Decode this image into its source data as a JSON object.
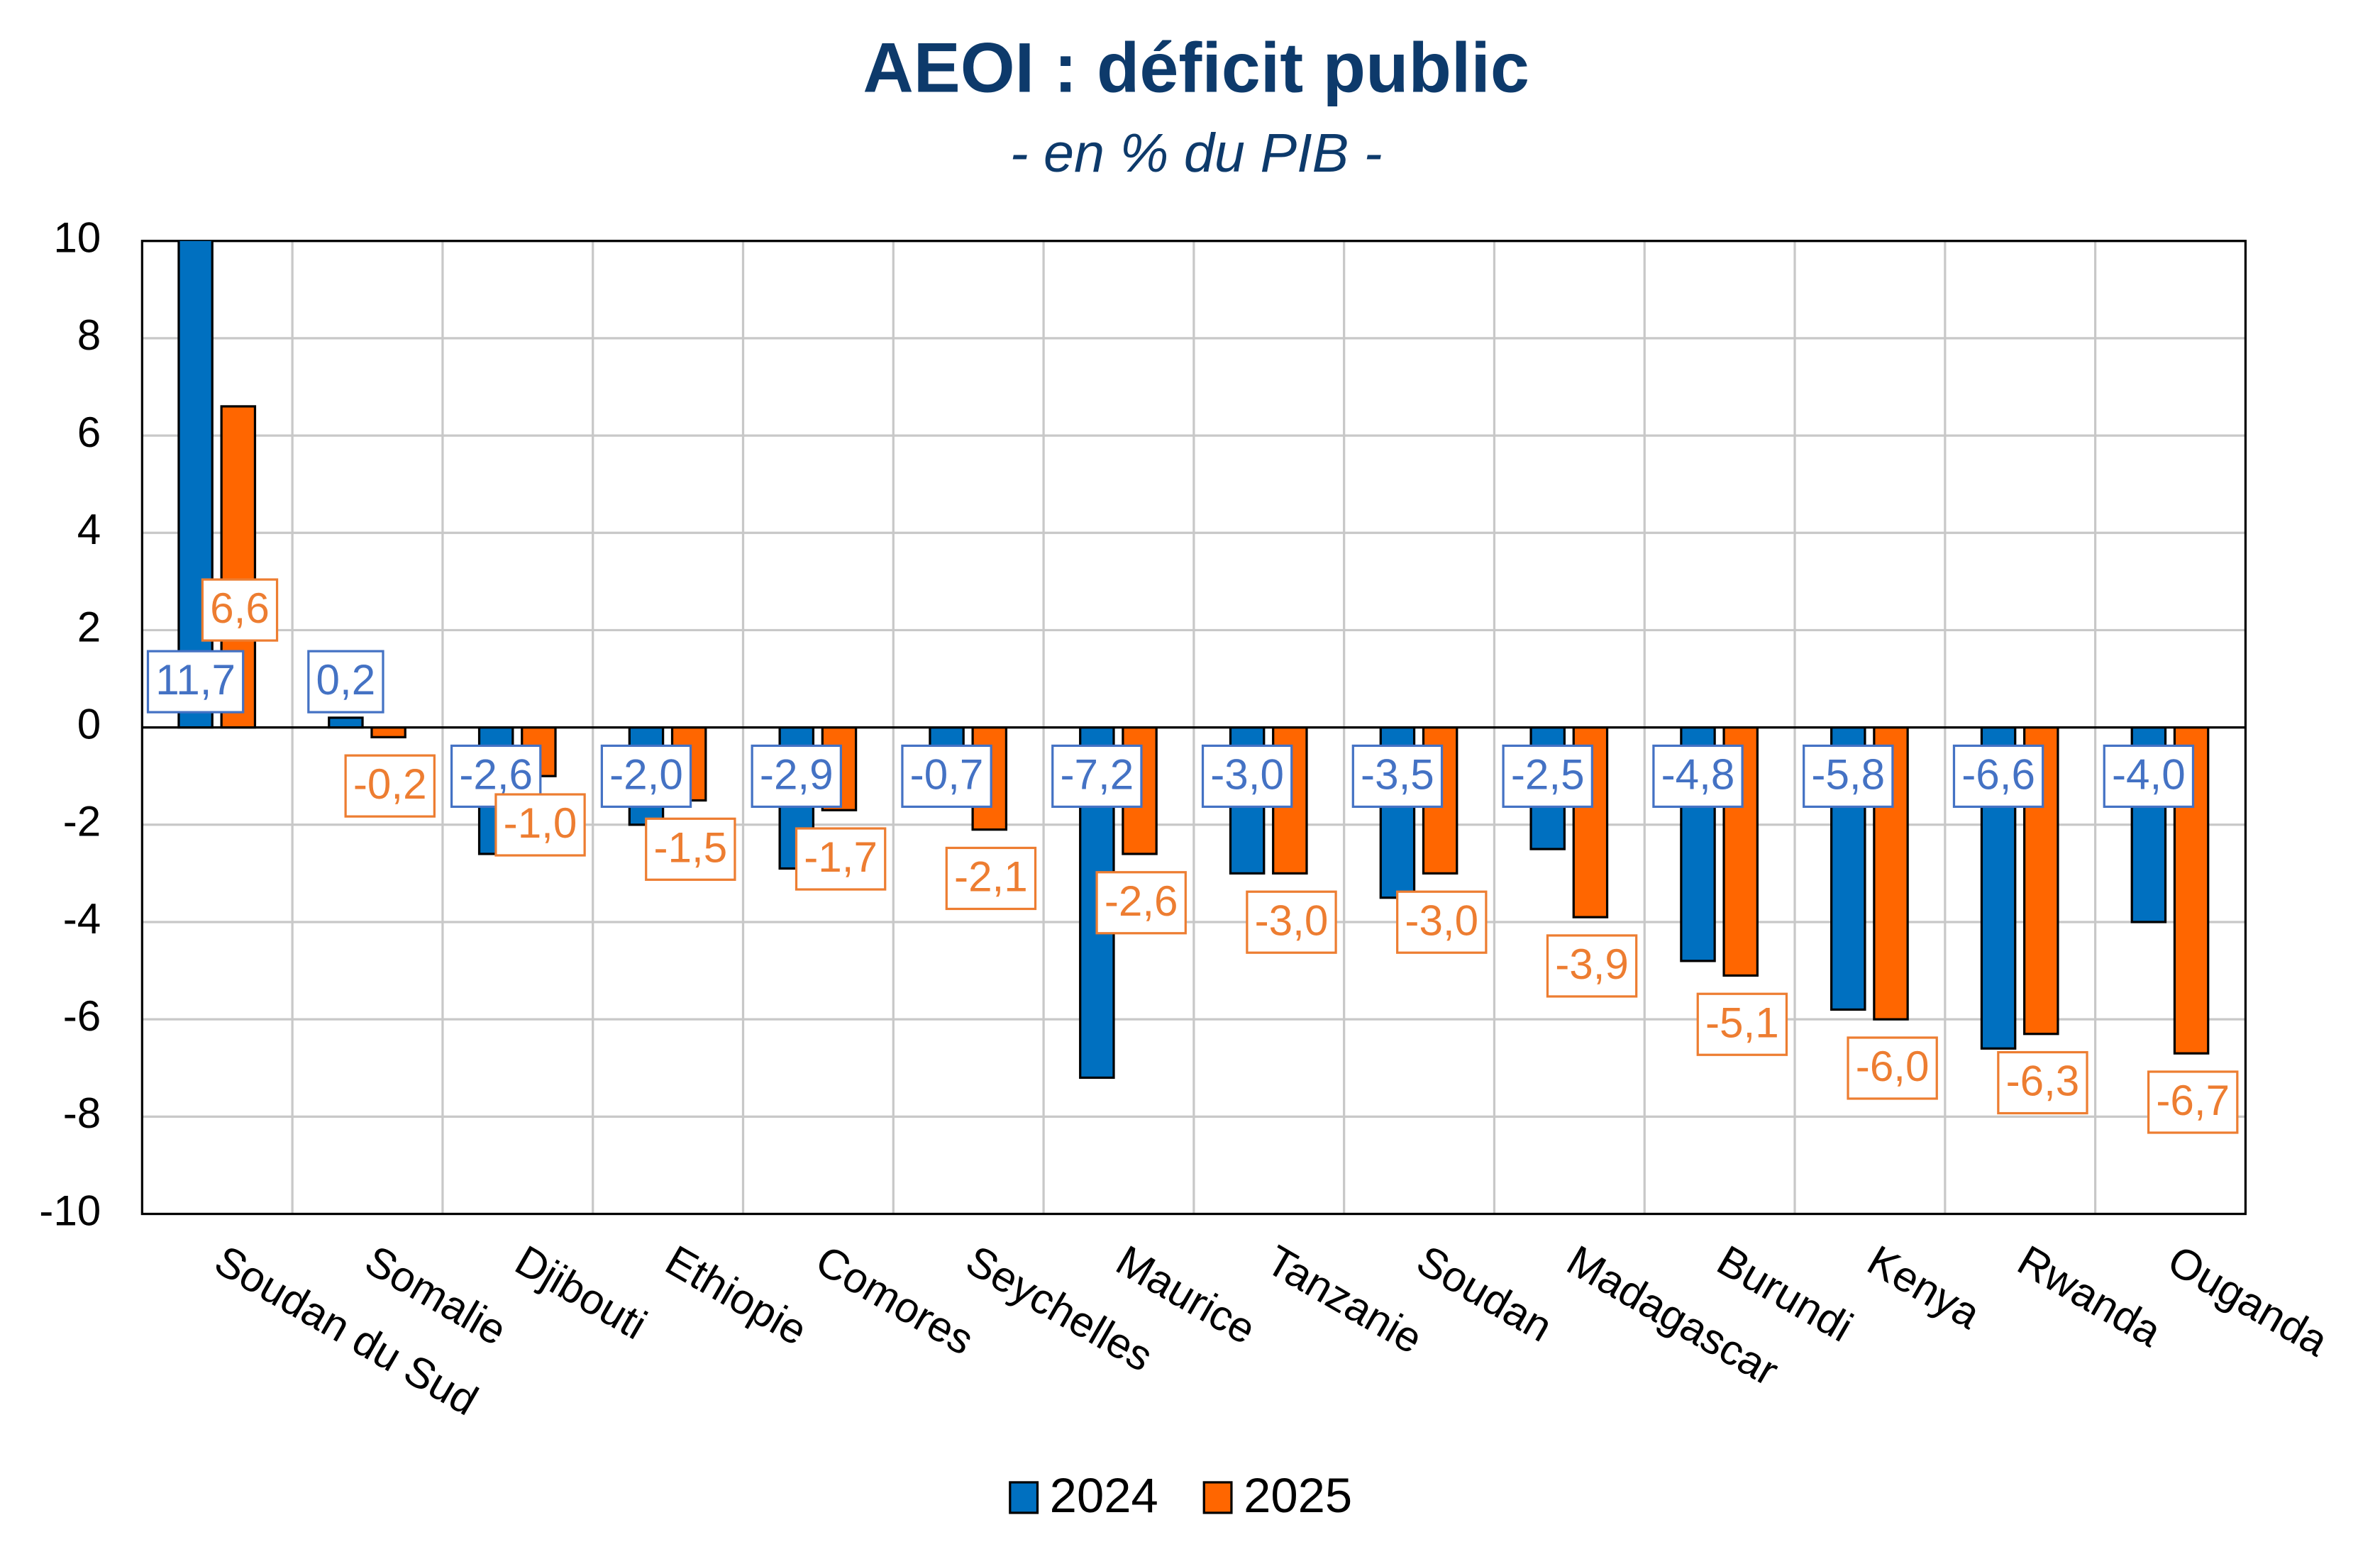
{
  "chart_data": {
    "type": "bar",
    "title": "AEOI : déficit public",
    "subtitle": "- en % du PIB -",
    "categories": [
      "Soudan du Sud",
      "Somalie",
      "Djibouti",
      "Ethiopie",
      "Comores",
      "Seychelles",
      "Maurice",
      "Tanzanie",
      "Soudan",
      "Madagascar",
      "Burundi",
      "Kenya",
      "Rwanda",
      "Ouganda"
    ],
    "series": [
      {
        "name": "2024",
        "color": "#0070c0",
        "label_color": "#4472c4",
        "values": [
          11.7,
          0.2,
          -2.6,
          -2.0,
          -2.9,
          -0.7,
          -7.2,
          -3.0,
          -3.5,
          -2.5,
          -4.8,
          -5.8,
          -6.6,
          -4.0
        ],
        "value_labels": [
          "11,7",
          "0,2",
          "-2,6",
          "-2,0",
          "-2,9",
          "-0,7",
          "-7,2",
          "-3,0",
          "-3,5",
          "-2,5",
          "-4,8",
          "-5,8",
          "-6,6",
          "-4,0"
        ]
      },
      {
        "name": "2025",
        "color": "#ff6600",
        "label_color": "#ed7d31",
        "values": [
          6.6,
          -0.2,
          -1.0,
          -1.5,
          -1.7,
          -2.1,
          -2.6,
          -3.0,
          -3.0,
          -3.9,
          -5.1,
          -6.0,
          -6.3,
          -6.7
        ],
        "value_labels": [
          "6,6",
          "-0,2",
          "-1,0",
          "-1,5",
          "-1,7",
          "-2,1",
          "-2,6",
          "-3,0",
          "-3,0",
          "-3,9",
          "-5,1",
          "-6,0",
          "-6,3",
          "-6,7"
        ]
      }
    ],
    "ylim": [
      -10,
      10
    ],
    "yticks": [
      -10,
      -8,
      -6,
      -4,
      -2,
      0,
      2,
      4,
      6,
      8,
      10
    ],
    "grid": true,
    "legend": "bottom"
  }
}
